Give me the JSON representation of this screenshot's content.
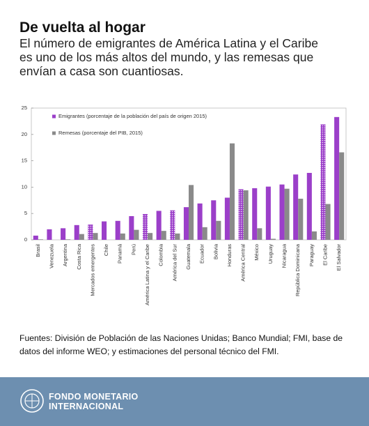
{
  "header": {
    "title": "De vuelta al hogar",
    "subtitle": "El número de emigrantes de América Latina y el Caribe es uno de los más altos del mundo, y las remesas que envían a casa son cuantiosas."
  },
  "chart_data": {
    "type": "bar",
    "categories": [
      "Brasil",
      "Venezuela",
      "Argentina",
      "Costa Rica",
      "Mercados emergentes",
      "Chile",
      "Panamá",
      "Perú",
      "América Latina y el Caribe",
      "Colombia",
      "América del Sur",
      "Guatemala",
      "Ecuador",
      "Bolivia",
      "Honduras",
      "América Central",
      "México",
      "Uruguay",
      "Nicaragua",
      "República Dominicana",
      "Paraguay",
      "El Caribe",
      "El Salvador"
    ],
    "series": [
      {
        "name": "Emigrantes (porcentaje de la población del país de origen 2015)",
        "color": "#9b3fc9",
        "values": [
          0.8,
          2.0,
          2.2,
          2.8,
          2.9,
          3.5,
          3.6,
          4.5,
          4.9,
          5.5,
          5.6,
          6.2,
          6.9,
          7.5,
          8.0,
          9.6,
          9.8,
          10.1,
          10.5,
          12.4,
          12.7,
          21.9,
          23.3
        ]
      },
      {
        "name": "Remesas (porcentaje del PIB, 2015)",
        "color": "#8a8a8a",
        "values": [
          0.1,
          0.0,
          0.1,
          1.1,
          1.3,
          0.0,
          1.2,
          1.9,
          1.3,
          1.7,
          1.2,
          10.4,
          2.4,
          3.6,
          18.3,
          9.4,
          2.2,
          0.2,
          9.7,
          7.8,
          1.6,
          6.8,
          16.6
        ]
      }
    ],
    "patterned": [
      4,
      8,
      10,
      15,
      21
    ],
    "ylim": [
      0,
      25
    ],
    "yticks": [
      0,
      5,
      10,
      15,
      20,
      25
    ],
    "legend": "top-left"
  },
  "source": "Fuentes: División de Población de las Naciones Unidas; Banco Mundial; FMI, base de datos del informe WEO; y estimaciones del personal técnico del FMI.",
  "footer": {
    "line1": "FONDO MONETARIO",
    "line2": "INTERNACIONAL"
  }
}
